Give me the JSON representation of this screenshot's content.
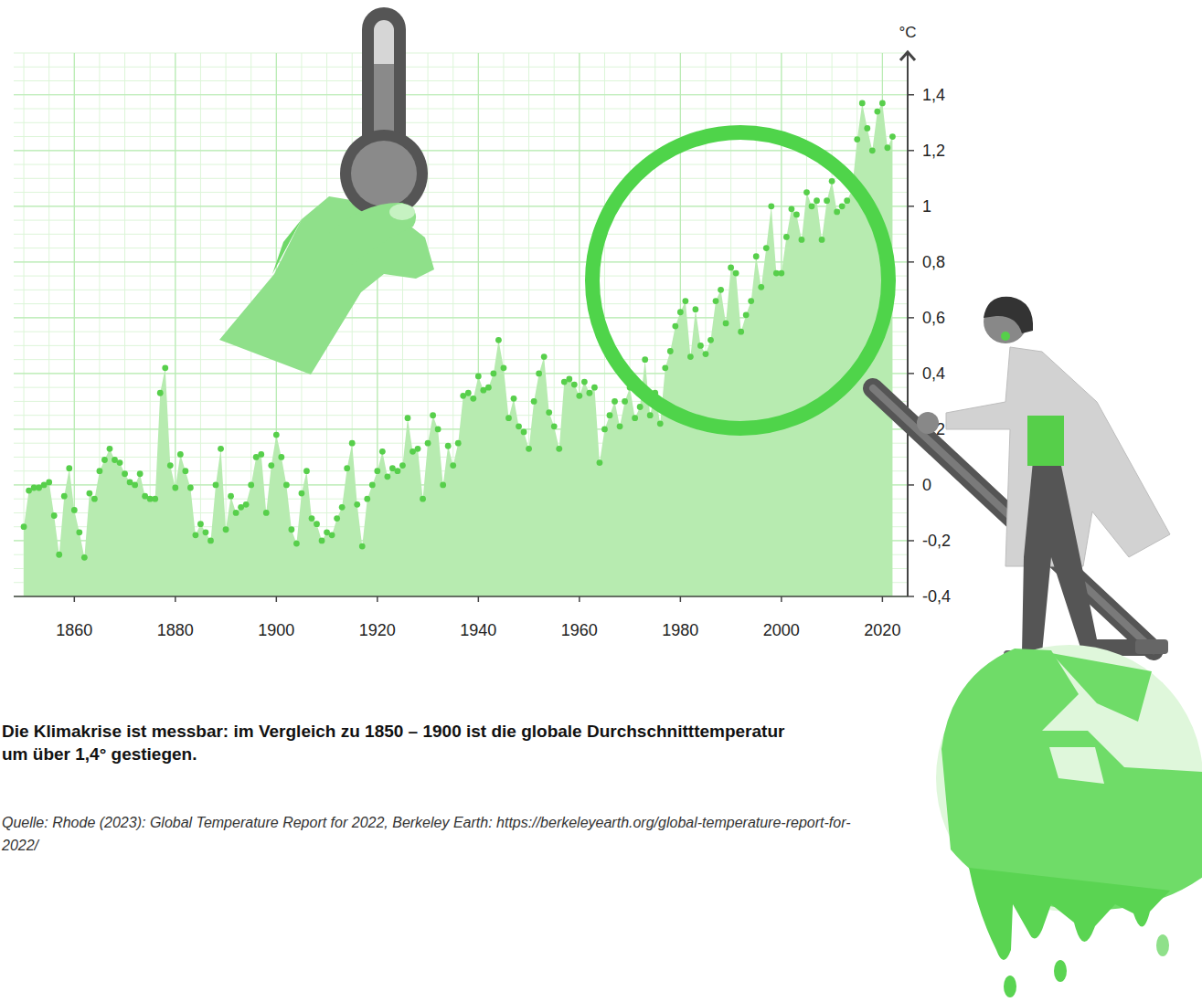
{
  "chart_data": {
    "type": "area",
    "title": "Die Klimakrise ist messbar: im Vergleich zu 1850 – 1900 ist die globale Durchschnitttemperatur um über 1,4° gestiegen.",
    "source": "Quelle: Rhode (2023): Global Temperature Report for 2022, Berkeley Earth: https://berkeleyearth.org/global-temperature-report-for-2022/",
    "y_label": "°C",
    "marker": "circle",
    "color": "#b7ebb0",
    "grid": true,
    "x": [
      1850,
      1851,
      1852,
      1853,
      1854,
      1855,
      1856,
      1857,
      1858,
      1859,
      1860,
      1861,
      1862,
      1863,
      1864,
      1865,
      1866,
      1867,
      1868,
      1869,
      1870,
      1871,
      1872,
      1873,
      1874,
      1875,
      1876,
      1877,
      1878,
      1879,
      1880,
      1881,
      1882,
      1883,
      1884,
      1885,
      1886,
      1887,
      1888,
      1889,
      1890,
      1891,
      1892,
      1893,
      1894,
      1895,
      1896,
      1897,
      1898,
      1899,
      1900,
      1901,
      1902,
      1903,
      1904,
      1905,
      1906,
      1907,
      1908,
      1909,
      1910,
      1911,
      1912,
      1913,
      1914,
      1915,
      1916,
      1917,
      1918,
      1919,
      1920,
      1921,
      1922,
      1923,
      1924,
      1925,
      1926,
      1927,
      1928,
      1929,
      1930,
      1931,
      1932,
      1933,
      1934,
      1935,
      1936,
      1937,
      1938,
      1939,
      1940,
      1941,
      1942,
      1943,
      1944,
      1945,
      1946,
      1947,
      1948,
      1949,
      1950,
      1951,
      1952,
      1953,
      1954,
      1955,
      1956,
      1957,
      1958,
      1959,
      1960,
      1961,
      1962,
      1963,
      1964,
      1965,
      1966,
      1967,
      1968,
      1969,
      1970,
      1971,
      1972,
      1973,
      1974,
      1975,
      1976,
      1977,
      1978,
      1979,
      1980,
      1981,
      1982,
      1983,
      1984,
      1985,
      1986,
      1987,
      1988,
      1989,
      1990,
      1991,
      1992,
      1993,
      1994,
      1995,
      1996,
      1997,
      1998,
      1999,
      2000,
      2001,
      2002,
      2003,
      2004,
      2005,
      2006,
      2007,
      2008,
      2009,
      2010,
      2011,
      2012,
      2013,
      2014,
      2015,
      2016,
      2017,
      2018,
      2019,
      2020,
      2021,
      2022
    ],
    "values": [
      -0.15,
      -0.02,
      -0.01,
      -0.01,
      0.0,
      0.01,
      -0.11,
      -0.25,
      -0.04,
      0.06,
      -0.09,
      -0.17,
      -0.26,
      -0.03,
      -0.05,
      0.05,
      0.09,
      0.13,
      0.09,
      0.08,
      0.04,
      0.01,
      0.0,
      0.04,
      -0.04,
      -0.05,
      -0.05,
      0.33,
      0.42,
      0.07,
      -0.01,
      0.11,
      0.05,
      -0.01,
      -0.18,
      -0.14,
      -0.17,
      -0.2,
      0.0,
      0.13,
      -0.16,
      -0.04,
      -0.1,
      -0.08,
      -0.07,
      0.0,
      0.1,
      0.11,
      -0.1,
      0.07,
      0.18,
      0.1,
      0.0,
      -0.16,
      -0.21,
      -0.03,
      0.05,
      -0.12,
      -0.14,
      -0.2,
      -0.17,
      -0.18,
      -0.12,
      -0.08,
      0.06,
      0.15,
      -0.07,
      -0.22,
      -0.05,
      0.0,
      0.05,
      0.12,
      0.03,
      0.06,
      0.05,
      0.07,
      0.24,
      0.12,
      0.13,
      -0.05,
      0.15,
      0.25,
      0.2,
      0.0,
      0.14,
      0.07,
      0.15,
      0.32,
      0.33,
      0.31,
      0.39,
      0.34,
      0.35,
      0.4,
      0.52,
      0.42,
      0.24,
      0.31,
      0.21,
      0.19,
      0.13,
      0.3,
      0.4,
      0.46,
      0.26,
      0.21,
      0.13,
      0.37,
      0.38,
      0.36,
      0.32,
      0.37,
      0.33,
      0.35,
      0.08,
      0.2,
      0.25,
      0.3,
      0.21,
      0.3,
      0.35,
      0.24,
      0.28,
      0.45,
      0.25,
      0.33,
      0.22,
      0.42,
      0.48,
      0.57,
      0.62,
      0.66,
      0.46,
      0.63,
      0.5,
      0.47,
      0.52,
      0.66,
      0.7,
      0.58,
      0.78,
      0.76,
      0.55,
      0.61,
      0.66,
      0.82,
      0.71,
      0.85,
      1.0,
      0.76,
      0.76,
      0.89,
      0.99,
      0.97,
      0.88,
      1.05,
      1.0,
      1.02,
      0.88,
      1.02,
      1.09,
      0.98,
      1.0,
      1.02,
      1.06,
      1.24,
      1.37,
      1.28,
      1.2,
      1.34,
      1.37,
      1.21,
      1.25
    ],
    "xlim": [
      1848,
      2025
    ],
    "xticks": [
      1860,
      1880,
      1900,
      1920,
      1940,
      1960,
      1980,
      2000,
      2020
    ],
    "ylim": [
      -0.4,
      1.55
    ],
    "yticks": [
      {
        "value": -0.4,
        "label": "-0,4"
      },
      {
        "value": -0.2,
        "label": "-0,2"
      },
      0,
      {
        "value": 0.2,
        "label": "0,2"
      },
      {
        "value": 0.4,
        "label": "0,4"
      },
      {
        "value": 0.6,
        "label": "0,6"
      },
      {
        "value": 0.8,
        "label": "0,8"
      },
      1,
      {
        "value": 1.2,
        "label": "1,2"
      },
      {
        "value": 1.4,
        "label": "1,4"
      }
    ]
  }
}
